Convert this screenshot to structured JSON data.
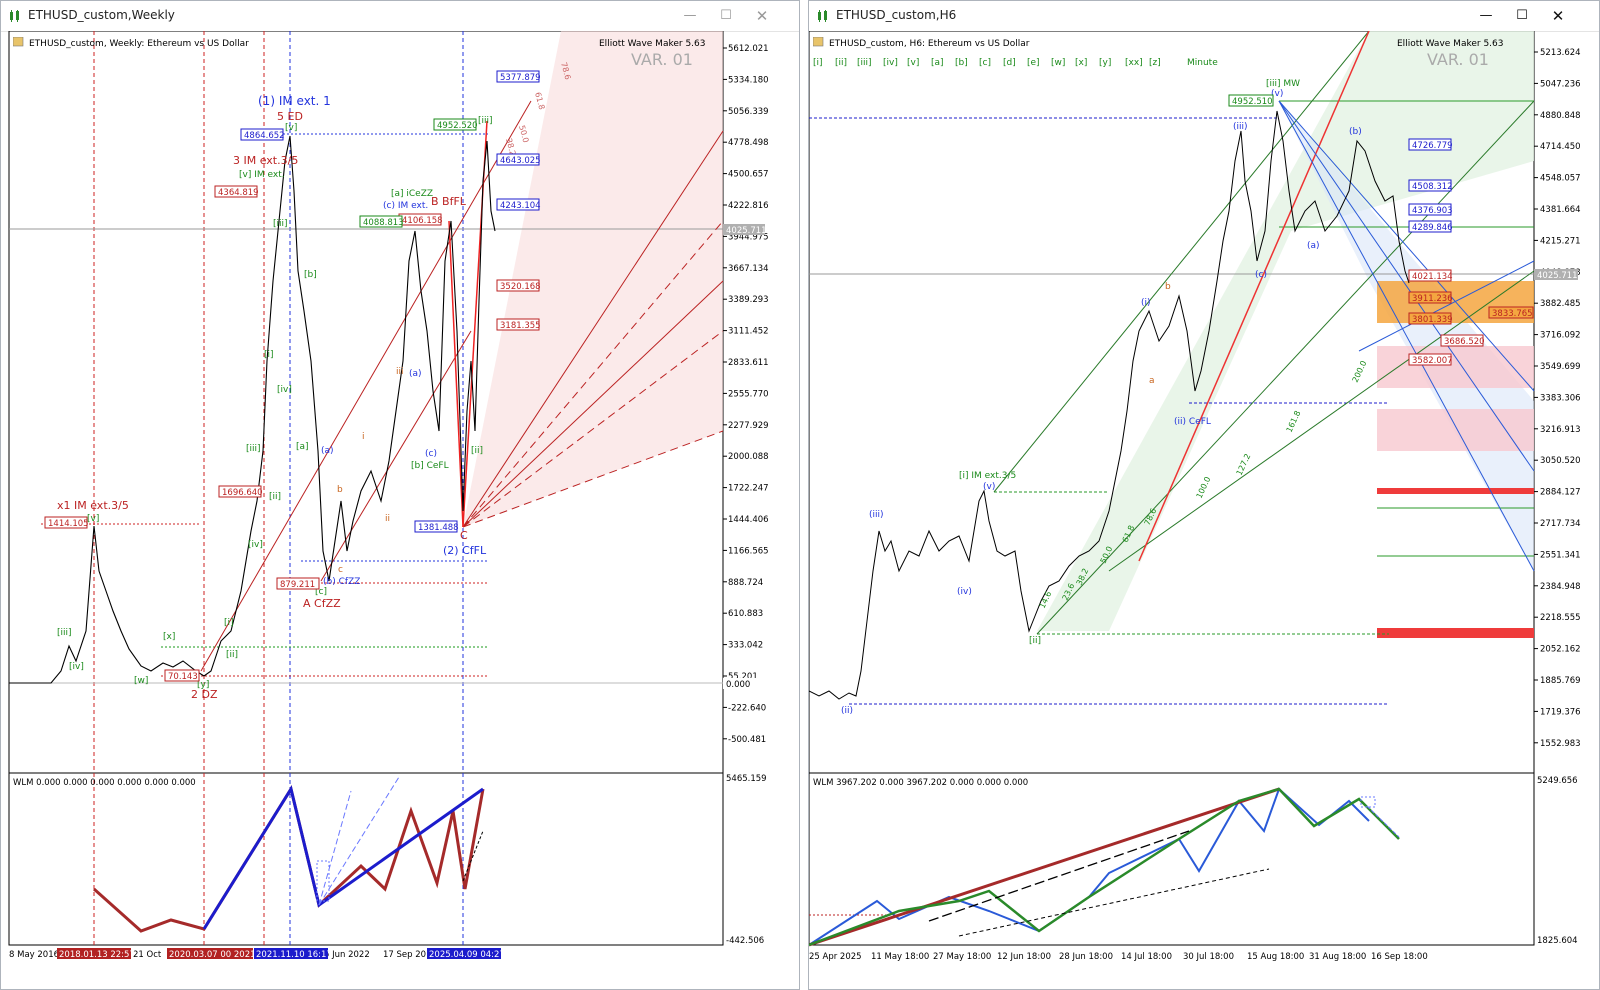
{
  "left": {
    "window_title": "ETHUSD_custom,Weekly",
    "chart_header": "ETHUSD_custom, Weekly:  Ethereum vs US Dollar",
    "plugin": "Elliott Wave Maker 5.63",
    "variant": "VAR. 01",
    "price_axis": [
      "5612.021",
      "5334.180",
      "5056.339",
      "4778.498",
      "4500.657",
      "4222.816",
      "3944.975",
      "3667.134",
      "3389.293",
      "3111.452",
      "2833.611",
      "2555.770",
      "2277.929",
      "2000.088",
      "1722.247",
      "1444.406",
      "1166.565",
      "888.724",
      "610.883",
      "333.042",
      "55.201",
      "-222.640",
      "-500.481"
    ],
    "current_price": "4025.711",
    "zero_label": "0.000",
    "indicator_label": "WLM 0.000 0.000 0.000 0.000 0.000 0.000",
    "indicator_axis": [
      "5465.159",
      "-442.506"
    ],
    "time_axis": [
      "8 May 2016",
      "21 Oct",
      "5 Jun 2022",
      "17 Sep 20"
    ],
    "time_markers": [
      {
        "text": "2018.01.13 22:57",
        "color": "#b22222"
      },
      {
        "text": "2020.03.07 00 2021.",
        "color": "#b22222"
      },
      {
        "text": "2021.11.10 16:17",
        "color": "#1c1ccc"
      },
      {
        "text": "2025.04.09 04:27",
        "color": "#1c1ccc"
      }
    ],
    "price_boxes_red": [
      "1414.105",
      "4364.819",
      "1696.640",
      "879.211",
      "70.143",
      "3520.168",
      "3181.355",
      "4106.158"
    ],
    "price_boxes_blue": [
      "4864.652",
      "5377.879",
      "4643.025",
      "4243.104",
      "1381.488"
    ],
    "price_boxes_green": [
      "4088.813",
      "4952.520"
    ],
    "wave_labels": {
      "im_ext1": "(1) IM ext. 1",
      "ed5": "5 ED",
      "im_ext35": "3 IM ext.3/5",
      "v_im_ext": "[v] IM ext.",
      "x1": "x1 IM ext.3/5",
      "dz": "2 DZ",
      "a_cfzz": "A CfZZ",
      "b_bfeel": "B BfFL",
      "c": "C",
      "cfl2": "(2) CfFL",
      "a_icezz": "[a] iCeZZ",
      "c_im_ext": "(c) IM ext.",
      "b_cefl": "[b] CeFL",
      "b_cfzz": "(b) CfZZ",
      "iii": "[iii]",
      "iv": "[iv]",
      "v": "[v]",
      "ii": "[ii]",
      "i": "[i]",
      "w": "[w]",
      "x": "[x]",
      "y": "[y]",
      "a": "(a)",
      "b": "[b]",
      "cc": "(c)",
      "iii_r": "iii",
      "ii_r": "ii",
      "i_r": "i",
      "a_br": "[a]",
      "c_br": "[c]",
      "b_sm": "b",
      "c_sm": "c"
    },
    "fib_labels": [
      "78.6",
      "61.8",
      "50.0",
      "38.2"
    ]
  },
  "right": {
    "window_title": "ETHUSD_custom,H6",
    "chart_header": "ETHUSD_custom, H6:  Ethereum vs US Dollar",
    "plugin": "Elliott Wave Maker 5.63",
    "variant": "VAR. 01",
    "toolbar": [
      "[i]",
      "[ii]",
      "[iii]",
      "[iv]",
      "[v]",
      "[a]",
      "[b]",
      "[c]",
      "[d]",
      "[e]",
      "[w]",
      "[x]",
      "[y]",
      "[xx]",
      "[z]",
      "Minute"
    ],
    "price_axis": [
      "5213.624",
      "5047.236",
      "4880.848",
      "4714.450",
      "4548.057",
      "4381.664",
      "4215.271",
      "4048.878",
      "3882.485",
      "3716.092",
      "3549.699",
      "3383.306",
      "3216.913",
      "3050.520",
      "2884.127",
      "2717.734",
      "2551.341",
      "2384.948",
      "2218.555",
      "2052.162",
      "1885.769",
      "1719.376",
      "1552.983"
    ],
    "current_price": "4025.711",
    "indicator_label": "WLM 3967.202 0.000 3967.202 0.000 0.000 0.000",
    "indicator_axis": [
      "5249.656",
      "1825.604"
    ],
    "time_axis": [
      "25 Apr 2025",
      "11 May 18:00",
      "27 May 18:00",
      "12 Jun 18:00",
      "28 Jun 18:00",
      "14 Jul 18:00",
      "30 Jul 18:00",
      "15 Aug 18:00",
      "31 Aug 18:00",
      "16 Sep 18:00"
    ],
    "price_boxes_blue": [
      "4726.779",
      "4508.312",
      "4376.903",
      "4289.846"
    ],
    "price_boxes_red": [
      "4021.134",
      "3911.236",
      "3801.339",
      "3833.765",
      "3686.520",
      "3582.007"
    ],
    "price_boxes_green": [
      "4952.510"
    ],
    "wave_labels": {
      "iii_mw": "[iii] MW",
      "i_im": "[i] IM ext.3/5",
      "ii_cefl": "(ii) CeFL",
      "ii_br": "[ii]",
      "iii_p": "(iii)",
      "iv_p": "(iv)",
      "v_p": "(v)",
      "ii_p": "(ii)",
      "i_p": "(i)",
      "b_p": "(b)",
      "a_p": "(a)",
      "c_p": "(c)",
      "a_sm": "a",
      "b_sm": "b"
    },
    "fib_labels": [
      "14.6",
      "23.6",
      "38.2",
      "50.0",
      "61.8",
      "78.6",
      "100.0",
      "127.2",
      "161.8",
      "200.0"
    ]
  }
}
